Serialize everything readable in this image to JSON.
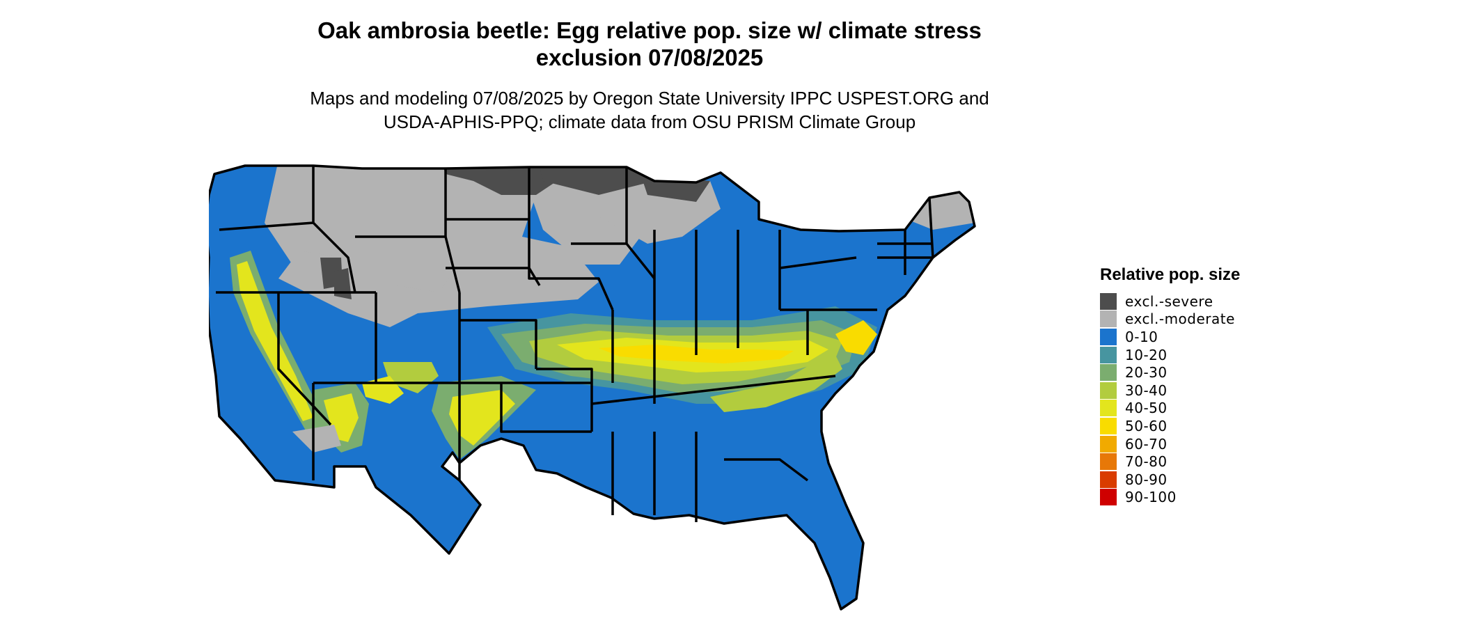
{
  "title": {
    "line1": "Oak ambrosia beetle: Egg relative pop. size w/ climate stress",
    "line2": "exclusion 07/08/2025"
  },
  "subtitle": {
    "line1": "Maps and modeling 07/08/2025 by Oregon State University IPPC USPEST.ORG and",
    "line2": "USDA-APHIS-PPQ; climate data from OSU PRISM Climate Group"
  },
  "legend": {
    "title": "Relative pop. size",
    "items": [
      {
        "label": "excl.-severe",
        "color": "#4d4d4d"
      },
      {
        "label": "excl.-moderate",
        "color": "#b3b3b3"
      },
      {
        "label": "0-10",
        "color": "#1b74cd"
      },
      {
        "label": "10-20",
        "color": "#4795a0"
      },
      {
        "label": "20-30",
        "color": "#7bad6f"
      },
      {
        "label": "30-40",
        "color": "#b2cc3e"
      },
      {
        "label": "40-50",
        "color": "#e3e51d"
      },
      {
        "label": "50-60",
        "color": "#f9dc00"
      },
      {
        "label": "60-70",
        "color": "#f1aa00"
      },
      {
        "label": "70-80",
        "color": "#e77808"
      },
      {
        "label": "80-90",
        "color": "#d93c00"
      },
      {
        "label": "90-100",
        "color": "#cf0000"
      }
    ]
  },
  "map": {
    "region": "Contiguous United States",
    "state_border_color": "#000000"
  }
}
